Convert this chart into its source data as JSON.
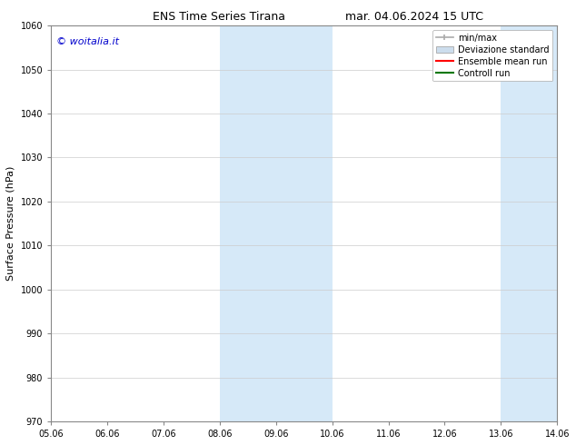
{
  "title_left": "ENS Time Series Tirana",
  "title_right": "mar. 04.06.2024 15 UTC",
  "ylabel": "Surface Pressure (hPa)",
  "ylim": [
    970,
    1060
  ],
  "yticks": [
    970,
    980,
    990,
    1000,
    1010,
    1020,
    1030,
    1040,
    1050,
    1060
  ],
  "xtick_labels": [
    "05.06",
    "06.06",
    "07.06",
    "08.06",
    "09.06",
    "10.06",
    "11.06",
    "12.06",
    "13.06",
    "14.06"
  ],
  "xtick_positions": [
    0,
    1,
    2,
    3,
    4,
    5,
    6,
    7,
    8,
    9
  ],
  "shaded_bands": [
    {
      "x_start": 3,
      "x_end": 5,
      "color": "#d6e9f8"
    },
    {
      "x_start": 8,
      "x_end": 9,
      "color": "#d6e9f8"
    }
  ],
  "watermark_text": "© woitalia.it",
  "watermark_color": "#0000cc",
  "background_color": "#ffffff",
  "legend_items": [
    {
      "label": "min/max",
      "color": "#aaaaaa",
      "style": "minmax"
    },
    {
      "label": "Deviazione standard",
      "color": "#ccdded",
      "style": "std"
    },
    {
      "label": "Ensemble mean run",
      "color": "#ff0000",
      "style": "line"
    },
    {
      "label": "Controll run",
      "color": "#007700",
      "style": "line"
    }
  ],
  "title_fontsize": 9,
  "axis_label_fontsize": 8,
  "tick_fontsize": 7,
  "legend_fontsize": 7,
  "watermark_fontsize": 8
}
